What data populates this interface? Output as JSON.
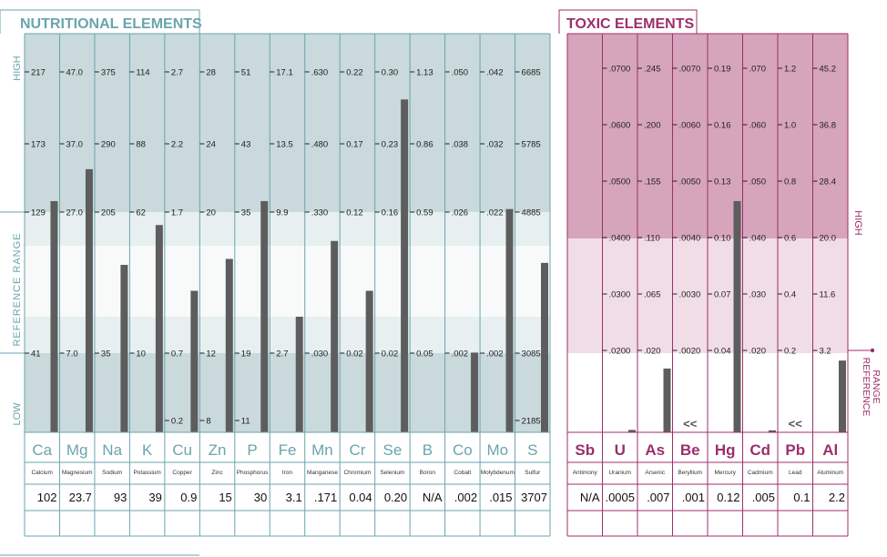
{
  "chart_data": [
    {
      "type": "bar",
      "title": "NUTRITIONAL ELEMENTS",
      "side_labels": {
        "high": "HIGH",
        "reference": "REFERENCE RANGE",
        "low": "LOW"
      },
      "colors": {
        "accent": "#6aa5ad",
        "top_band": "#c9d9dc",
        "light_band": "#e7eff0",
        "white_band": "#f8fafa",
        "bottom_band": "#c9d9dc",
        "bar": "#5d5d5d"
      },
      "elements": [
        {
          "symbol": "Ca",
          "name": "Calcium",
          "value": "102",
          "ticks": [
            "217",
            "173",
            "129",
            "41"
          ],
          "bar_level": 0.58
        },
        {
          "symbol": "Mg",
          "name": "Magnesium",
          "value": "23.7",
          "ticks": [
            "47.0",
            "37.0",
            "27.0",
            "7.0"
          ],
          "bar_level": 0.66
        },
        {
          "symbol": "Na",
          "name": "Sodium",
          "value": "93",
          "ticks": [
            "375",
            "290",
            "205",
            "35"
          ],
          "bar_level": 0.42
        },
        {
          "symbol": "K",
          "name": "Potassium",
          "value": "39",
          "ticks": [
            "114",
            "88",
            "62",
            "10"
          ],
          "bar_level": 0.52
        },
        {
          "symbol": "Cu",
          "name": "Copper",
          "value": "0.9",
          "ticks": [
            "2.7",
            "2.2",
            "1.7",
            "0.7",
            "0.2"
          ],
          "bar_level": 0.355
        },
        {
          "symbol": "Zn",
          "name": "Zinc",
          "value": "15",
          "ticks": [
            "28",
            "24",
            "20",
            "12",
            "8"
          ],
          "bar_level": 0.435
        },
        {
          "symbol": "P",
          "name": "Phosphorus",
          "value": "30",
          "ticks": [
            "51",
            "43",
            "35",
            "19",
            "11"
          ],
          "bar_level": 0.58
        },
        {
          "symbol": "Fe",
          "name": "Iron",
          "value": "3.1",
          "ticks": [
            "17.1",
            "13.5",
            "9.9",
            "2.7"
          ],
          "bar_level": 0.29
        },
        {
          "symbol": "Mn",
          "name": "Manganese",
          "value": ".171",
          "ticks": [
            ".630",
            ".480",
            ".330",
            ".030"
          ],
          "bar_level": 0.48
        },
        {
          "symbol": "Cr",
          "name": "Chromium",
          "value": "0.04",
          "ticks": [
            "0.22",
            "0.17",
            "0.12",
            "0.02"
          ],
          "bar_level": 0.355
        },
        {
          "symbol": "Se",
          "name": "Selenium",
          "value": "0.20",
          "ticks": [
            "0.30",
            "0.23",
            "0.16",
            "0.02"
          ],
          "bar_level": 0.835
        },
        {
          "symbol": "B",
          "name": "Boron",
          "value": "N/A",
          "ticks": [
            "1.13",
            "0.86",
            "0.59",
            "0.05"
          ],
          "bar_level": 0
        },
        {
          "symbol": "Co",
          "name": "Cobalt",
          "value": ".002",
          "ticks": [
            ".050",
            ".038",
            ".026",
            ".002"
          ],
          "bar_level": 0.2
        },
        {
          "symbol": "Mo",
          "name": "Molybdenum",
          "value": ".015",
          "ticks": [
            ".042",
            ".032",
            ".022",
            ".002"
          ],
          "bar_level": 0.56
        },
        {
          "symbol": "S",
          "name": "Sulfur",
          "value": "3707",
          "ticks": [
            "6685",
            "5785",
            "4885",
            "3085",
            "2185"
          ],
          "bar_level": 0.425
        }
      ]
    },
    {
      "type": "bar",
      "title": "TOXIC ELEMENTS",
      "side_labels": {
        "high": "HIGH",
        "reference": "REFERENCE RANGE"
      },
      "colors": {
        "accent": "#9c2f6b",
        "top_band": "#d6a4bb",
        "mid_band": "#e9c8d6",
        "light_band": "#f1dde6",
        "bar": "#5d5d5d"
      },
      "elements": [
        {
          "symbol": "Sb",
          "name": "Antimony",
          "value": "N/A",
          "ticks": [],
          "bar_level": 0
        },
        {
          "symbol": "U",
          "name": "Uranium",
          "value": ".0005",
          "ticks": [
            ".0700",
            ".0600",
            ".0500",
            ".0400",
            ".0300",
            ".0200"
          ],
          "bar_level": 0.006
        },
        {
          "symbol": "As",
          "name": "Arsenic",
          "value": ".007",
          "ticks": [
            ".245",
            ".200",
            ".155",
            ".110",
            ".065",
            ".020"
          ],
          "bar_level": 0.16
        },
        {
          "symbol": "Be",
          "name": "Beryllium",
          "value": ".001",
          "ticks": [
            ".0070",
            ".0060",
            ".0050",
            ".0040",
            ".0030",
            ".0020"
          ],
          "bar_level": 0,
          "marker": "<<"
        },
        {
          "symbol": "Hg",
          "name": "Mercury",
          "value": "0.12",
          "ticks": [
            "0.19",
            "0.16",
            "0.13",
            "0.10",
            "0.07",
            "0.04"
          ],
          "bar_level": 0.58
        },
        {
          "symbol": "Cd",
          "name": "Cadmium",
          "value": ".005",
          "ticks": [
            ".070",
            ".060",
            ".050",
            ".040",
            ".030",
            ".020"
          ],
          "bar_level": 0.005
        },
        {
          "symbol": "Pb",
          "name": "Lead",
          "value": "0.1",
          "ticks": [
            "1.2",
            "1.0",
            "0.8",
            "0.6",
            "0.4",
            "0.2"
          ],
          "bar_level": 0,
          "marker": "<<"
        },
        {
          "symbol": "Al",
          "name": "Aluminum",
          "value": "2.2",
          "ticks": [
            "45.2",
            "36.8",
            "28.4",
            "20.0",
            "11.6",
            "3.2"
          ],
          "bar_level": 0.18
        }
      ]
    }
  ]
}
